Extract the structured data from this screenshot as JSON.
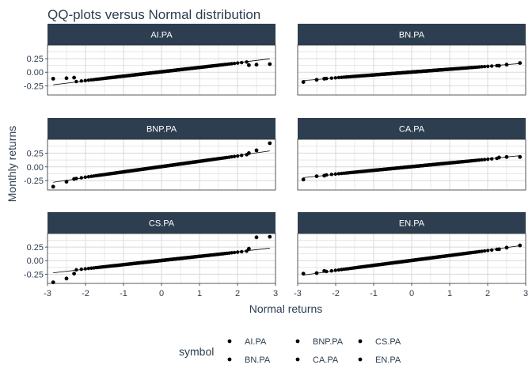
{
  "chart_data": {
    "type": "scatter",
    "title": "QQ-plots versus Normal distribution",
    "xlabel": "Normal returns",
    "ylabel": "Monthly returns",
    "xlim": [
      -3.0,
      3.0
    ],
    "x_ticks": [
      -3,
      -2,
      -1,
      0,
      1,
      2,
      3
    ],
    "x_tick_labels": [
      "-3",
      "-2",
      "-1",
      "0",
      "1",
      "2",
      "3"
    ],
    "y_ticks": [
      -0.25,
      0.0,
      0.25
    ],
    "y_tick_labels": [
      "-0.25",
      "0.00",
      "0.25"
    ],
    "grid": true,
    "reference_line": "qq-line",
    "panels": [
      {
        "label": "AI.PA",
        "ylim": [
          -0.42,
          0.5
        ],
        "slope": 0.084,
        "intercept": 0.008,
        "low_tail": [
          [
            -2.85,
            -0.12
          ],
          [
            -2.5,
            -0.11
          ],
          [
            -2.3,
            -0.1
          ]
        ],
        "high_tail": [
          [
            2.3,
            0.13
          ],
          [
            2.5,
            0.14
          ],
          [
            2.85,
            0.15
          ]
        ]
      },
      {
        "label": "BN.PA",
        "ylim": [
          -0.42,
          0.5
        ],
        "slope": 0.055,
        "intercept": 0.003,
        "low_tail": [
          [
            -2.85,
            -0.18
          ],
          [
            -2.5,
            -0.14
          ],
          [
            -2.3,
            -0.12
          ]
        ],
        "high_tail": [
          [
            2.3,
            0.12
          ],
          [
            2.5,
            0.14
          ],
          [
            2.85,
            0.17
          ]
        ]
      },
      {
        "label": "BNP.PA",
        "ylim": [
          -0.42,
          0.5
        ],
        "slope": 0.1,
        "intercept": 0.005,
        "low_tail": [
          [
            -2.85,
            -0.36
          ],
          [
            -2.5,
            -0.27
          ],
          [
            -2.3,
            -0.22
          ]
        ],
        "high_tail": [
          [
            2.3,
            0.25
          ],
          [
            2.5,
            0.3
          ],
          [
            2.85,
            0.43
          ]
        ]
      },
      {
        "label": "CA.PA",
        "ylim": [
          -0.42,
          0.5
        ],
        "slope": 0.07,
        "intercept": 0.004,
        "low_tail": [
          [
            -2.85,
            -0.23
          ],
          [
            -2.5,
            -0.17
          ],
          [
            -2.3,
            -0.16
          ]
        ],
        "high_tail": [
          [
            2.3,
            0.17
          ],
          [
            2.5,
            0.18
          ],
          [
            2.85,
            0.18
          ]
        ]
      },
      {
        "label": "CS.PA",
        "ylim": [
          -0.42,
          0.5
        ],
        "slope": 0.08,
        "intercept": 0.003,
        "low_tail": [
          [
            -2.85,
            -0.4
          ],
          [
            -2.5,
            -0.33
          ],
          [
            -2.3,
            -0.24
          ]
        ],
        "high_tail": [
          [
            2.3,
            0.22
          ],
          [
            2.5,
            0.43
          ],
          [
            2.85,
            0.44
          ]
        ]
      },
      {
        "label": "EN.PA",
        "ylim": [
          -0.42,
          0.5
        ],
        "slope": 0.095,
        "intercept": 0.004,
        "low_tail": [
          [
            -2.85,
            -0.24
          ],
          [
            -2.5,
            -0.23
          ],
          [
            -2.3,
            -0.19
          ]
        ],
        "high_tail": [
          [
            2.3,
            0.21
          ],
          [
            2.5,
            0.24
          ],
          [
            2.85,
            0.28
          ]
        ]
      }
    ],
    "legend": {
      "title": "symbol",
      "position": "bottom",
      "entries": [
        "AI.PA",
        "BN.PA",
        "BNP.PA",
        "CA.PA",
        "CS.PA",
        "EN.PA"
      ]
    }
  },
  "colors": {
    "strip_bg": "#2c3e50",
    "strip_text": "#ffffff",
    "grid": "#d9d9d9",
    "panel_border": "#333333",
    "point": "#000000",
    "text": "#2c3e50"
  }
}
